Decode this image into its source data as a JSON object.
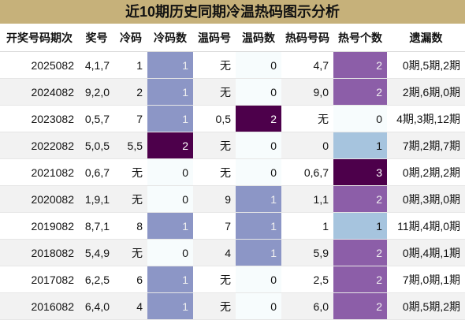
{
  "title": "近10期历史同期冷温热码图示分析",
  "headers": [
    "开奖号码期次",
    "奖号",
    "冷码",
    "冷码数",
    "温码号",
    "温码数",
    "热码号码",
    "热号个数",
    "遗漏数"
  ],
  "rows": [
    {
      "period": "2025082",
      "number": "4,1,7",
      "cold": "1",
      "cold_count": "1",
      "warm": "无",
      "warm_count": "0",
      "hot": "4,7",
      "hot_count": "2",
      "miss": "0期,5期,2期"
    },
    {
      "period": "2024082",
      "number": "9,2,0",
      "cold": "2",
      "cold_count": "1",
      "warm": "无",
      "warm_count": "0",
      "hot": "9,0",
      "hot_count": "2",
      "miss": "2期,6期,0期"
    },
    {
      "period": "2023082",
      "number": "0,5,7",
      "cold": "7",
      "cold_count": "1",
      "warm": "0,5",
      "warm_count": "2",
      "hot": "无",
      "hot_count": "0",
      "miss": "4期,3期,12期"
    },
    {
      "period": "2022082",
      "number": "5,0,5",
      "cold": "5,5",
      "cold_count": "2",
      "warm": "无",
      "warm_count": "0",
      "hot": "0",
      "hot_count": "1",
      "miss": "7期,2期,7期"
    },
    {
      "period": "2021082",
      "number": "0,6,7",
      "cold": "无",
      "cold_count": "0",
      "warm": "无",
      "warm_count": "0",
      "hot": "0,6,7",
      "hot_count": "3",
      "miss": "0期,2期,2期"
    },
    {
      "period": "2020082",
      "number": "1,9,1",
      "cold": "无",
      "cold_count": "0",
      "warm": "9",
      "warm_count": "1",
      "hot": "1,1",
      "hot_count": "2",
      "miss": "0期,3期,0期"
    },
    {
      "period": "2019082",
      "number": "8,7,1",
      "cold": "8",
      "cold_count": "1",
      "warm": "7",
      "warm_count": "1",
      "hot": "1",
      "hot_count": "1",
      "miss": "11期,4期,0期"
    },
    {
      "period": "2018082",
      "number": "5,4,9",
      "cold": "无",
      "cold_count": "0",
      "warm": "4",
      "warm_count": "1",
      "hot": "5,9",
      "hot_count": "2",
      "miss": "0期,4期,1期"
    },
    {
      "period": "2017082",
      "number": "6,2,5",
      "cold": "6",
      "cold_count": "1",
      "warm": "无",
      "warm_count": "0",
      "hot": "2,5",
      "hot_count": "2",
      "miss": "7期,0期,1期"
    },
    {
      "period": "2016082",
      "number": "6,4,0",
      "cold": "4",
      "cold_count": "1",
      "warm": "无",
      "warm_count": "0",
      "hot": "6,0",
      "hot_count": "2",
      "miss": "0期,5期,2期"
    }
  ],
  "colors": {
    "title_bg": "#c6b17a",
    "count_0": "#f7fcfd",
    "count_1_blue": "#8c96c6",
    "count_1_light": "#a6c4de",
    "count_2": "#8c5ea8",
    "count_2_dark": "#4d004b",
    "count_3": "#4d004b"
  }
}
